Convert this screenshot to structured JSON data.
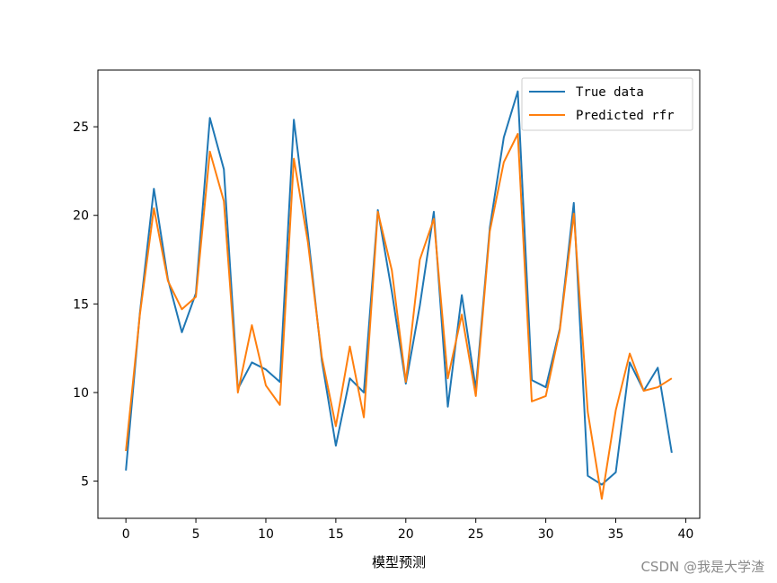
{
  "chart_data": {
    "type": "line",
    "title": "",
    "xlabel": "模型预测",
    "ylabel": "",
    "xlim": [
      -2,
      41
    ],
    "ylim": [
      2.9,
      28.2
    ],
    "xticks": [
      0,
      5,
      10,
      15,
      20,
      25,
      30,
      35,
      40
    ],
    "yticks": [
      5,
      10,
      15,
      20,
      25
    ],
    "grid": false,
    "legend_position": "top-right",
    "x": [
      0,
      1,
      2,
      3,
      4,
      5,
      6,
      7,
      8,
      9,
      10,
      11,
      12,
      13,
      14,
      15,
      16,
      17,
      18,
      19,
      20,
      21,
      22,
      23,
      24,
      25,
      26,
      27,
      28,
      29,
      30,
      31,
      32,
      33,
      34,
      35,
      36,
      37,
      38,
      39
    ],
    "series": [
      {
        "name": "True data",
        "color": "#1f77b4",
        "values": [
          5.6,
          14.5,
          21.5,
          16.4,
          13.4,
          15.6,
          25.5,
          22.6,
          10.2,
          11.7,
          11.3,
          10.6,
          25.4,
          19.0,
          11.8,
          7.0,
          10.8,
          10.0,
          20.3,
          15.7,
          10.5,
          14.9,
          20.2,
          9.2,
          15.5,
          10.2,
          19.3,
          24.4,
          27.0,
          10.7,
          10.3,
          13.6,
          20.7,
          5.3,
          4.8,
          5.5,
          11.7,
          10.1,
          11.4,
          6.6
        ]
      },
      {
        "name": "Predicted rfr",
        "color": "#ff7f0e",
        "values": [
          6.7,
          14.4,
          20.4,
          16.3,
          14.7,
          15.4,
          23.6,
          20.8,
          10.0,
          13.8,
          10.4,
          9.3,
          23.2,
          18.5,
          12.0,
          8.1,
          12.6,
          8.6,
          20.2,
          16.9,
          10.6,
          17.5,
          19.8,
          10.8,
          14.4,
          9.8,
          19.1,
          23.0,
          24.6,
          9.5,
          9.8,
          13.5,
          20.1,
          8.9,
          4.0,
          9.0,
          12.2,
          10.1,
          10.3,
          10.8
        ]
      }
    ]
  },
  "watermark": "CSDN @我是大学渣"
}
